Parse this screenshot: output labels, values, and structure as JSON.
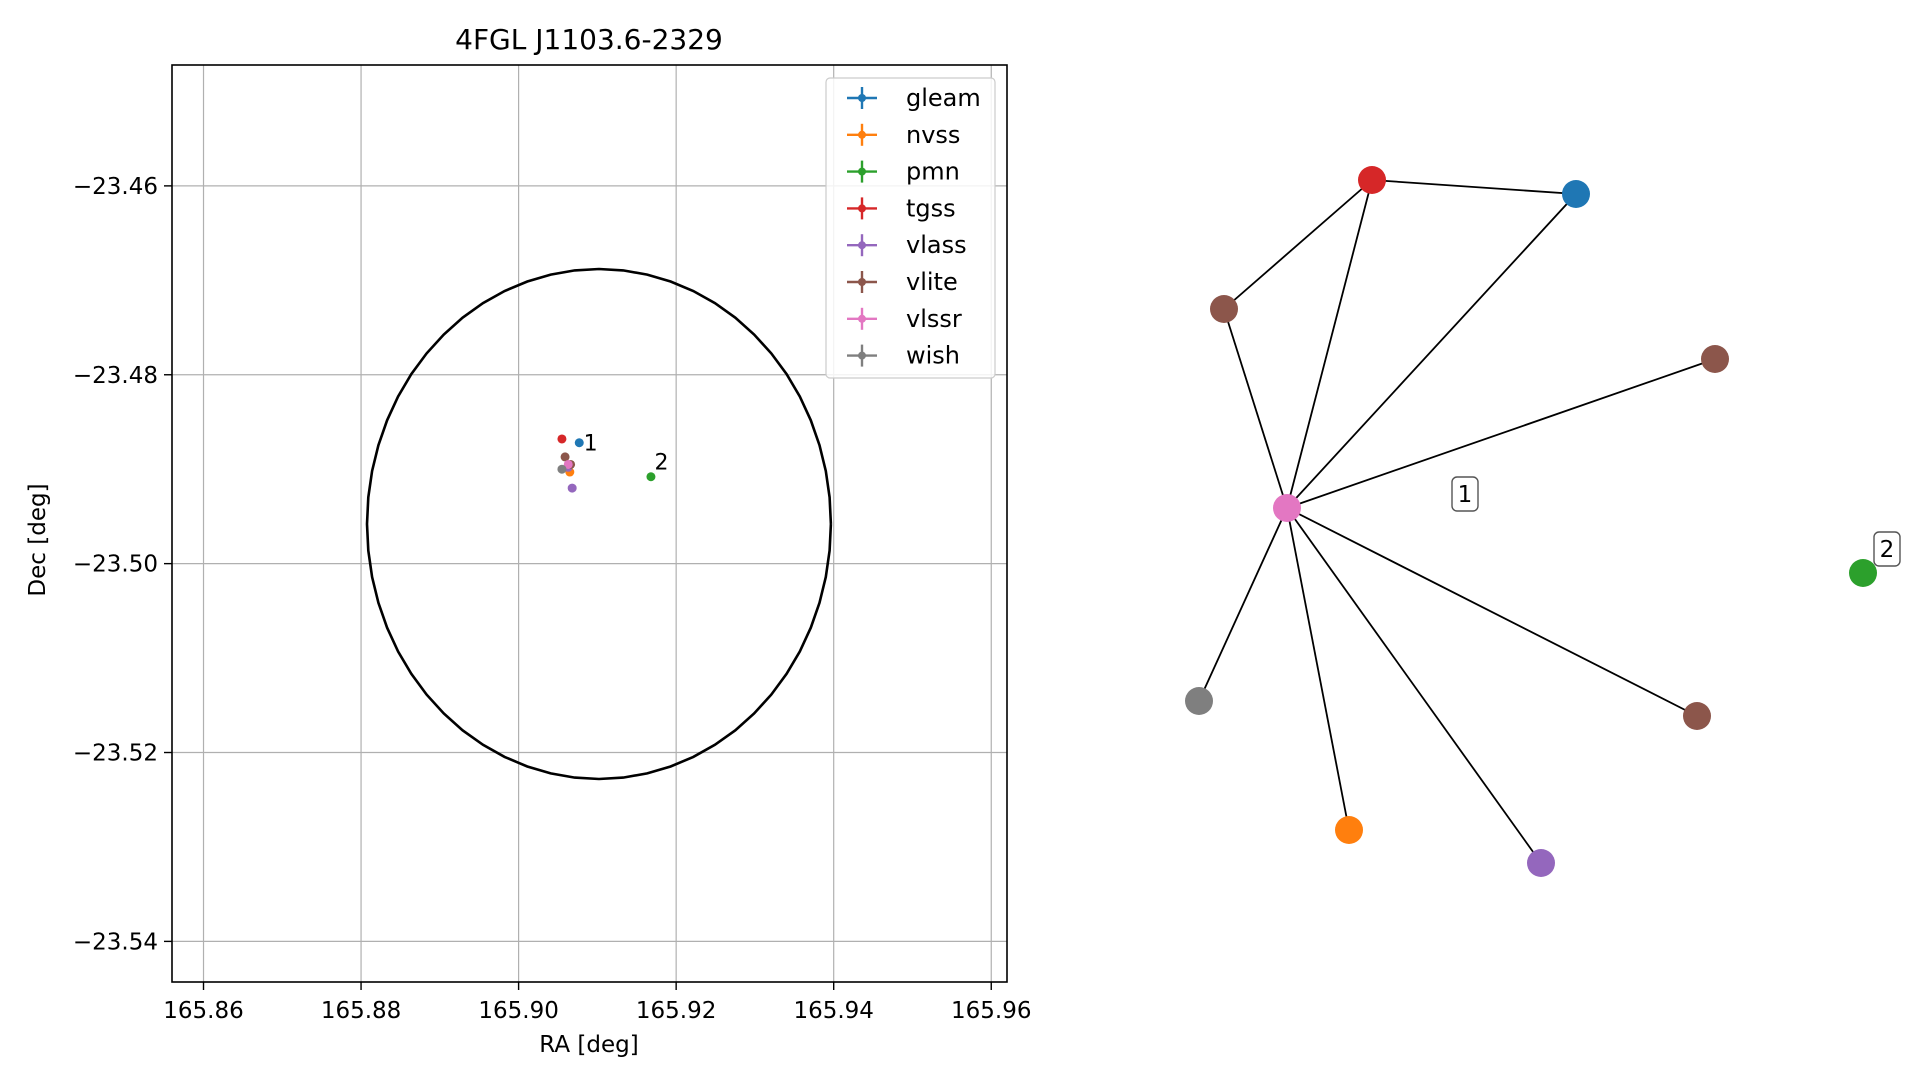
{
  "chart_data": [
    {
      "type": "scatter",
      "title": "4FGL J1103.6-2329",
      "xlabel": "RA [deg]",
      "ylabel": "Dec [deg]",
      "xlim": [
        165.856,
        165.962
      ],
      "ylim": [
        -23.5443,
        -23.4472
      ],
      "x_ticks": [
        165.86,
        165.88,
        165.9,
        165.92,
        165.94,
        165.96
      ],
      "x_tick_labels": [
        "165.86",
        "165.88",
        "165.90",
        "165.92",
        "165.94",
        "165.96"
      ],
      "y_ticks": [
        -23.46,
        -23.48,
        -23.5,
        -23.52,
        -23.54
      ],
      "y_tick_labels": [
        "−23.46",
        "−23.48",
        "−23.50",
        "−23.52",
        "−23.54"
      ],
      "grid": true,
      "legend_position": "top-right",
      "legend": [
        {
          "label": "gleam",
          "color": "#1f77b4"
        },
        {
          "label": "nvss",
          "color": "#ff7f0e"
        },
        {
          "label": "pmn",
          "color": "#2ca02c"
        },
        {
          "label": "tgss",
          "color": "#d62728"
        },
        {
          "label": "vlass",
          "color": "#9467bd"
        },
        {
          "label": "vlite",
          "color": "#8c564b"
        },
        {
          "label": "vlssr",
          "color": "#e377c2"
        },
        {
          "label": "wish",
          "color": "#7f7f7f"
        }
      ],
      "circle": {
        "center_ra": 165.9102,
        "center_dec": -23.4958,
        "radius_dec": 0.027,
        "color": "#000000"
      },
      "points": [
        {
          "survey": "gleam",
          "ra": 165.9077,
          "dec": -23.4872,
          "color": "#1f77b4"
        },
        {
          "survey": "nvss",
          "ra": 165.9065,
          "dec": -23.4903,
          "color": "#ff7f0e"
        },
        {
          "survey": "pmn",
          "ra": 165.9168,
          "dec": -23.4908,
          "color": "#2ca02c"
        },
        {
          "survey": "tgss",
          "ra": 165.9055,
          "dec": -23.4868,
          "color": "#d62728"
        },
        {
          "survey": "vlass",
          "ra": 165.9068,
          "dec": -23.492,
          "color": "#9467bd"
        },
        {
          "survey": "vlass",
          "ra": 165.9063,
          "dec": -23.4898,
          "color": "#9467bd"
        },
        {
          "survey": "vlite",
          "ra": 165.9059,
          "dec": -23.4887,
          "color": "#8c564b"
        },
        {
          "survey": "vlite",
          "ra": 165.9066,
          "dec": -23.4895,
          "color": "#8c564b"
        },
        {
          "survey": "vlssr",
          "ra": 165.9063,
          "dec": -23.4895,
          "color": "#e377c2"
        },
        {
          "survey": "wish",
          "ra": 165.9055,
          "dec": -23.49,
          "color": "#7f7f7f"
        }
      ],
      "annotations": [
        {
          "text": "1",
          "ra": 165.908,
          "dec": -23.4873
        },
        {
          "text": "2",
          "ra": 165.917,
          "dec": -23.4893
        }
      ]
    },
    {
      "type": "network",
      "nodes": [
        {
          "id": "vlssr",
          "color": "#e377c2"
        },
        {
          "id": "tgss",
          "color": "#d62728"
        },
        {
          "id": "gleam",
          "color": "#1f77b4"
        },
        {
          "id": "vlite_a",
          "color": "#8c564b"
        },
        {
          "id": "vlite_b",
          "color": "#8c564b"
        },
        {
          "id": "vlite_c",
          "color": "#8c564b"
        },
        {
          "id": "wish",
          "color": "#7f7f7f"
        },
        {
          "id": "nvss",
          "color": "#ff7f0e"
        },
        {
          "id": "vlass",
          "color": "#9467bd"
        },
        {
          "id": "pmn",
          "color": "#2ca02c"
        }
      ],
      "edges": [
        [
          "tgss",
          "gleam"
        ],
        [
          "tgss",
          "vlite_a"
        ],
        [
          "tgss",
          "vlssr"
        ],
        [
          "gleam",
          "vlssr"
        ],
        [
          "vlite_a",
          "vlssr"
        ],
        [
          "vlite_b",
          "vlssr"
        ],
        [
          "vlite_c",
          "vlssr"
        ],
        [
          "wish",
          "vlssr"
        ],
        [
          "nvss",
          "vlssr"
        ],
        [
          "vlass",
          "vlssr"
        ]
      ],
      "group_labels": [
        {
          "text": "1",
          "group": "vlssr"
        },
        {
          "text": "2",
          "group": "pmn"
        }
      ]
    }
  ]
}
